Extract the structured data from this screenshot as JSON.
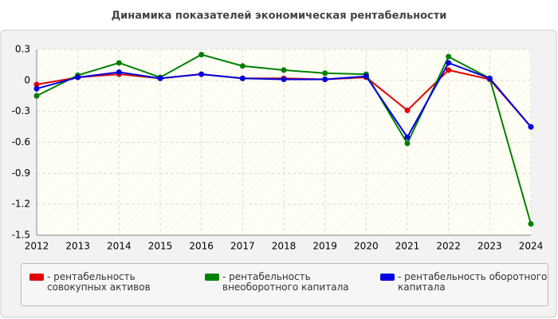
{
  "chart_data": {
    "type": "line",
    "title": "Динамика показателей экономическая рентабельности",
    "x": [
      2012,
      2013,
      2014,
      2015,
      2016,
      2017,
      2018,
      2019,
      2020,
      2021,
      2022,
      2023,
      2024
    ],
    "xlim": [
      2012,
      2024
    ],
    "xticks": [
      2012,
      2013,
      2014,
      2015,
      2016,
      2017,
      2018,
      2019,
      2020,
      2021,
      2022,
      2023,
      2024
    ],
    "ylim": [
      -1.5,
      0.3
    ],
    "yticks": [
      0.3,
      0,
      -0.3,
      -0.6,
      -0.9,
      -1.2,
      -1.5
    ],
    "grid": true,
    "series": [
      {
        "name": "- рентабельность совокупных активов",
        "color": "#e00000",
        "values": [
          -0.04,
          0.03,
          0.06,
          0.02,
          0.06,
          0.02,
          0.02,
          0.01,
          0.03,
          -0.29,
          0.1,
          0.01,
          -0.45
        ]
      },
      {
        "name": "- рентабельность внеоборотного капитала",
        "color": "#008000",
        "values": [
          -0.15,
          0.05,
          0.17,
          0.03,
          0.25,
          0.14,
          0.1,
          0.07,
          0.06,
          -0.61,
          0.23,
          0.02,
          -1.39
        ]
      },
      {
        "name": "- рентабельность оборотного капитала",
        "color": "#0000e0",
        "values": [
          -0.08,
          0.03,
          0.08,
          0.02,
          0.06,
          0.02,
          0.01,
          0.01,
          0.04,
          -0.55,
          0.17,
          0.02,
          -0.45
        ]
      }
    ]
  }
}
